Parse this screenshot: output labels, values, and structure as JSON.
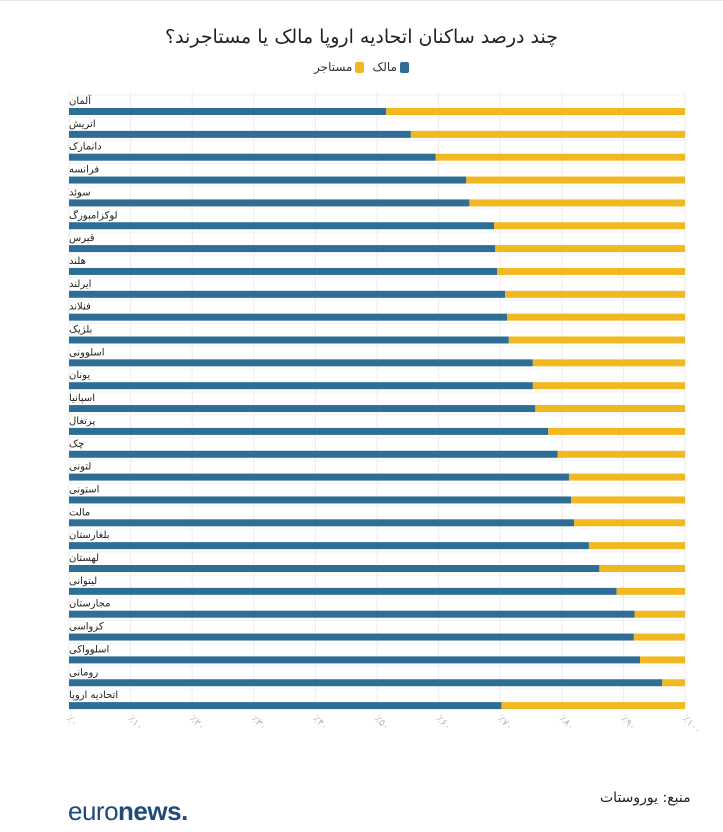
{
  "chart_data": {
    "type": "bar",
    "orientation": "horizontal",
    "stacked": true,
    "title": "چند درصد ساکنان اتحادیه اروپا مالک یا مستاجرند؟",
    "categories": [
      "آلمان",
      "اتریش",
      "دانمارک",
      "فرانسه",
      "سوئد",
      "لوکزامبورگ",
      "قبرس",
      "هلند",
      "ایرلند",
      "فنلاند",
      "بلژیک",
      "اسلوونی",
      "یونان",
      "اسپانیا",
      "پرتغال",
      "چک",
      "لتونی",
      "استونی",
      "مالت",
      "بلغارستان",
      "لهستان",
      "لیتوانی",
      "مجارستان",
      "کرواسی",
      "اسلوواکی",
      "رومانی",
      "اتحادیه اروپا"
    ],
    "series": [
      {
        "name": "مالک",
        "color": "#2e6e96",
        "values": [
          51.5,
          55.5,
          59.5,
          64.5,
          65,
          69,
          69.2,
          69.5,
          70.8,
          71.1,
          71.4,
          75.3,
          75.3,
          75.7,
          77.8,
          79.3,
          81.2,
          81.5,
          82,
          84.4,
          86.1,
          88.9,
          91.8,
          91.7,
          92.7,
          96.3,
          70.2
        ]
      },
      {
        "name": "مستاجر",
        "color": "#f2b822",
        "values": [
          48.5,
          44.5,
          40.5,
          35.5,
          35,
          31,
          30.8,
          30.5,
          29.2,
          28.9,
          28.6,
          24.7,
          24.7,
          24.3,
          22.2,
          20.7,
          18.8,
          18.5,
          18,
          15.6,
          13.9,
          11.1,
          8.2,
          8.3,
          7.3,
          3.7,
          29.8
        ]
      }
    ],
    "x_ticks": [
      "٪۰",
      "٪۱۰",
      "٪۲۰",
      "٪۳۰",
      "٪۴۰",
      "٪۵۰",
      "٪۶۰",
      "٪۷۰",
      "٪۸۰",
      "٪۹۰",
      "٪۱۰۰"
    ],
    "xlim": [
      0,
      100
    ],
    "grid": true,
    "legend_position": "top-center"
  },
  "legend": {
    "owner_label": "مالک",
    "tenant_label": "مستاجر",
    "owner_color": "#2e6e96",
    "tenant_color": "#f2b822"
  },
  "source": "منبع: یوروستات",
  "logo": {
    "part1": "euro",
    "part2": "news."
  }
}
